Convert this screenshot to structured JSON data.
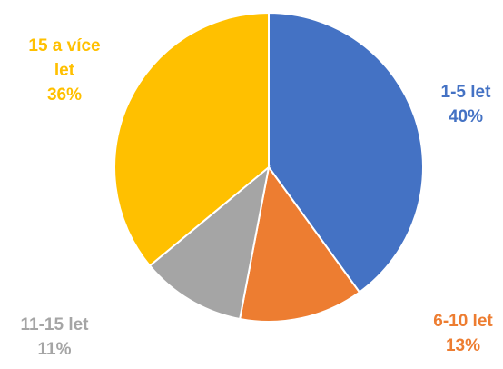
{
  "chart_data": {
    "type": "pie",
    "categories": [
      "1-5 let",
      "6-10 let",
      "11-15 let",
      "15 a více let"
    ],
    "values": [
      40,
      13,
      11,
      36
    ],
    "unit": "%",
    "colors": [
      "#4472C4",
      "#ED7D31",
      "#A5A5A5",
      "#FFC000"
    ],
    "labels": [
      {
        "line1": "1-5 let",
        "line2": "40%"
      },
      {
        "line1": "6-10 let",
        "line2": "13%"
      },
      {
        "line1": "11-15 let",
        "line2": "11%"
      },
      {
        "line1": "15 a více",
        "line2": "let",
        "line3": "36%"
      }
    ],
    "start_angle": "12 o'clock",
    "direction": "clockwise",
    "legend": "none"
  }
}
